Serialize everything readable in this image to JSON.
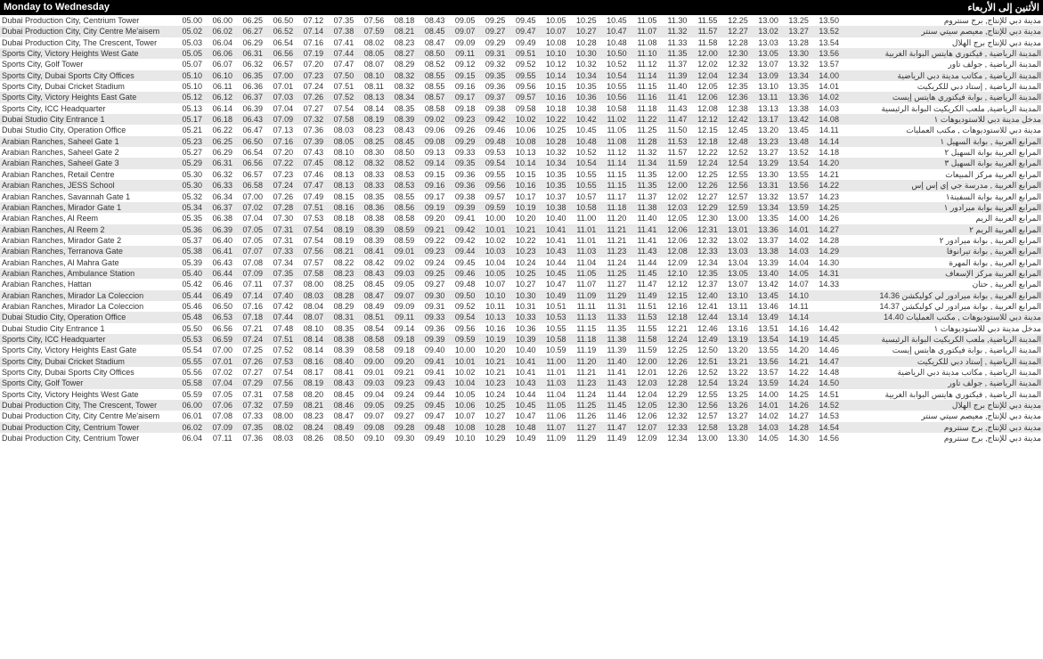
{
  "header": {
    "left": "Monday to Wednesday",
    "right": "الأثنين إلى الأربعاء"
  },
  "rows": [
    {
      "en": "Dubai Production City, Centrium Tower",
      "ar": "مدينة دبي للإنتاج, برج سنتروم",
      "t": [
        "05.00",
        "06.00",
        "06.25",
        "06.50",
        "07.12",
        "07.35",
        "07.56",
        "08.18",
        "08.43",
        "09.05",
        "09.25",
        "09.45",
        "10.05",
        "10.25",
        "10.45",
        "11.05",
        "11.30",
        "11.55",
        "12.25",
        "13.00",
        "13.25",
        "13.50"
      ]
    },
    {
      "en": "Dubai Production City, City Centre Me'aisem",
      "ar": "مدينة دبي للإنتاج, معيصم سيتي سنتر",
      "t": [
        "05.02",
        "06.02",
        "06.27",
        "06.52",
        "07.14",
        "07.38",
        "07.59",
        "08.21",
        "08.45",
        "09.07",
        "09.27",
        "09.47",
        "10.07",
        "10.27",
        "10.47",
        "11.07",
        "11.32",
        "11.57",
        "12.27",
        "13.02",
        "13.27",
        "13.52"
      ]
    },
    {
      "en": "Dubai Production City, The Crescent, Tower",
      "ar": "مدينة دبي للإنتاج برج الهلال",
      "t": [
        "05.03",
        "06.04",
        "06.29",
        "06.54",
        "07.16",
        "07.41",
        "08.02",
        "08.23",
        "08.47",
        "09.09",
        "09.29",
        "09.49",
        "10.08",
        "10.28",
        "10.48",
        "11.08",
        "11.33",
        "11.58",
        "12.28",
        "13.03",
        "13.28",
        "13.54"
      ]
    },
    {
      "en": "Sports City, Victory Heights West Gate",
      "ar": "المدينة الرياضية , فيكتوري هايتس البوابة الغربية",
      "t": [
        "05.05",
        "06.06",
        "06.31",
        "06.56",
        "07.19",
        "07.44",
        "08.05",
        "08.27",
        "08.50",
        "09.11",
        "09.31",
        "09.51",
        "10.10",
        "10.30",
        "10.50",
        "11.10",
        "11.35",
        "12.00",
        "12.30",
        "13.05",
        "13.30",
        "13.56"
      ]
    },
    {
      "en": "Sports City, Golf Tower",
      "ar": "المدينة الرياضية , جولف تاور",
      "t": [
        "05.07",
        "06.07",
        "06.32",
        "06.57",
        "07.20",
        "07.47",
        "08.07",
        "08.29",
        "08.52",
        "09.12",
        "09.32",
        "09.52",
        "10.12",
        "10.32",
        "10.52",
        "11.12",
        "11.37",
        "12.02",
        "12.32",
        "13.07",
        "13.32",
        "13.57"
      ]
    },
    {
      "en": "Sports City, Dubai Sports City Offices",
      "ar": "المدينة الرياضية , مكاتب مدينة دبي الرياضية",
      "t": [
        "05.10",
        "06.10",
        "06.35",
        "07.00",
        "07.23",
        "07.50",
        "08.10",
        "08.32",
        "08.55",
        "09.15",
        "09.35",
        "09.55",
        "10.14",
        "10.34",
        "10.54",
        "11.14",
        "11.39",
        "12.04",
        "12.34",
        "13.09",
        "13.34",
        "14.00"
      ]
    },
    {
      "en": "Sports City, Dubai Cricket Stadium",
      "ar": "المدينة الرياضية , إستاد دبي للكريكيت",
      "t": [
        "05.10",
        "06.11",
        "06.36",
        "07.01",
        "07.24",
        "07.51",
        "08.11",
        "08.32",
        "08.55",
        "09.16",
        "09.36",
        "09.56",
        "10.15",
        "10.35",
        "10.55",
        "11.15",
        "11.40",
        "12.05",
        "12.35",
        "13.10",
        "13.35",
        "14.01"
      ]
    },
    {
      "en": "Sports City, Victory Heights East Gate",
      "ar": "المدينة الرياضية , بوابة فيكتوري هايتس إيست",
      "t": [
        "05.12",
        "06.12",
        "06.37",
        "07.03",
        "07.26",
        "07.52",
        "08.13",
        "08.34",
        "08.57",
        "09.17",
        "09.37",
        "09.57",
        "10.16",
        "10.36",
        "10.56",
        "11.16",
        "11.41",
        "12.06",
        "12.36",
        "13.11",
        "13.36",
        "14.02"
      ]
    },
    {
      "en": "Sports City, ICC Headquarter",
      "ar": "المدينة الرياضية, ملعب الكريكيت البوابة الرئيسية",
      "t": [
        "05.13",
        "06.14",
        "06.39",
        "07.04",
        "07.27",
        "07.54",
        "08.14",
        "08.35",
        "08.58",
        "09.18",
        "09.38",
        "09.58",
        "10.18",
        "10.38",
        "10.58",
        "11.18",
        "11.43",
        "12.08",
        "12.38",
        "13.13",
        "13.38",
        "14.03"
      ]
    },
    {
      "en": "Dubai Studio City Entrance 1",
      "ar": "مدخل مدينة دبي للاستوديوهات ١",
      "t": [
        "05.17",
        "06.18",
        "06.43",
        "07.09",
        "07.32",
        "07.58",
        "08.19",
        "08.39",
        "09.02",
        "09.23",
        "09.42",
        "10.02",
        "10.22",
        "10.42",
        "11.02",
        "11.22",
        "11.47",
        "12.12",
        "12.42",
        "13.17",
        "13.42",
        "14.08"
      ]
    },
    {
      "en": "Dubai Studio City, Operation Office",
      "ar": "مدينة دبي للاستوديوهات , مكتب العمليات",
      "t": [
        "05.21",
        "06.22",
        "06.47",
        "07.13",
        "07.36",
        "08.03",
        "08.23",
        "08.43",
        "09.06",
        "09.26",
        "09.46",
        "10.06",
        "10.25",
        "10.45",
        "11.05",
        "11.25",
        "11.50",
        "12.15",
        "12.45",
        "13.20",
        "13.45",
        "14.11"
      ]
    },
    {
      "en": "Arabian Ranches, Saheel Gate 1",
      "ar": "المرابع العربية , بوابة السهيل ١",
      "t": [
        "05.23",
        "06.25",
        "06.50",
        "07.16",
        "07.39",
        "08.05",
        "08.25",
        "08.45",
        "09.08",
        "09.29",
        "09.48",
        "10.08",
        "10.28",
        "10.48",
        "11.08",
        "11.28",
        "11.53",
        "12.18",
        "12.48",
        "13.23",
        "13.48",
        "14.14"
      ]
    },
    {
      "en": "Arabian Ranches, Saheel Gate 2",
      "ar": "المرابع العربية بوابة السهيل ٢",
      "t": [
        "05.27",
        "06.29",
        "06.54",
        "07.20",
        "07.43",
        "08.10",
        "08.30",
        "08.50",
        "09.13",
        "09.33",
        "09.53",
        "10.13",
        "10.32",
        "10.52",
        "11.12",
        "11.32",
        "11.57",
        "12.22",
        "12.52",
        "13.27",
        "13.52",
        "14.18"
      ]
    },
    {
      "en": "Arabian Ranches, Saheel Gate 3",
      "ar": "المرابع العربية بوابة السهيل ٣",
      "t": [
        "05.29",
        "06.31",
        "06.56",
        "07.22",
        "07.45",
        "08.12",
        "08.32",
        "08.52",
        "09.14",
        "09.35",
        "09.54",
        "10.14",
        "10.34",
        "10.54",
        "11.14",
        "11.34",
        "11.59",
        "12.24",
        "12.54",
        "13.29",
        "13.54",
        "14.20"
      ]
    },
    {
      "en": "Arabian Ranches, Retail Centre",
      "ar": "المرابع العربية مركز المبيعات",
      "t": [
        "05.30",
        "06.32",
        "06.57",
        "07.23",
        "07.46",
        "08.13",
        "08.33",
        "08.53",
        "09.15",
        "09.36",
        "09.55",
        "10.15",
        "10.35",
        "10.55",
        "11.15",
        "11.35",
        "12.00",
        "12.25",
        "12.55",
        "13.30",
        "13.55",
        "14.21"
      ]
    },
    {
      "en": "Arabian Ranches, JESS School",
      "ar": "المرابع العربية , مدرسة جي إي إس إس",
      "t": [
        "05.30",
        "06.33",
        "06.58",
        "07.24",
        "07.47",
        "08.13",
        "08.33",
        "08.53",
        "09.16",
        "09.36",
        "09.56",
        "10.16",
        "10.35",
        "10.55",
        "11.15",
        "11.35",
        "12.00",
        "12.26",
        "12.56",
        "13.31",
        "13.56",
        "14.22"
      ]
    },
    {
      "en": "Arabian Ranches, Savannah Gate 1",
      "ar": "المرابع العربية بوابة السفينة١",
      "t": [
        "05.32",
        "06.34",
        "07.00",
        "07.26",
        "07.49",
        "08.15",
        "08.35",
        "08.55",
        "09.17",
        "09.38",
        "09.57",
        "10.17",
        "10.37",
        "10.57",
        "11.17",
        "11.37",
        "12.02",
        "12.27",
        "12.57",
        "13.32",
        "13.57",
        "14.23"
      ]
    },
    {
      "en": "Arabian Ranches, Mirador Gate 1",
      "ar": "المرابع العربية بوابة ميرادور ١",
      "t": [
        "05.34",
        "06.37",
        "07.02",
        "07.28",
        "07.51",
        "08.16",
        "08.36",
        "08.56",
        "09.19",
        "09.39",
        "09.59",
        "10.19",
        "10.38",
        "10.58",
        "11.18",
        "11.38",
        "12.03",
        "12.29",
        "12.59",
        "13.34",
        "13.59",
        "14.25"
      ]
    },
    {
      "en": "Arabian Ranches, Al Reem",
      "ar": "المرابع العربية الريم",
      "t": [
        "05.35",
        "06.38",
        "07.04",
        "07.30",
        "07.53",
        "08.18",
        "08.38",
        "08.58",
        "09.20",
        "09.41",
        "10.00",
        "10.20",
        "10.40",
        "11.00",
        "11.20",
        "11.40",
        "12.05",
        "12.30",
        "13.00",
        "13.35",
        "14.00",
        "14.26"
      ]
    },
    {
      "en": "Arabian Ranches, Al Reem 2",
      "ar": "المرابع العربية الريم ٢",
      "t": [
        "05.36",
        "06.39",
        "07.05",
        "07.31",
        "07.54",
        "08.19",
        "08.39",
        "08.59",
        "09.21",
        "09.42",
        "10.01",
        "10.21",
        "10.41",
        "11.01",
        "11.21",
        "11.41",
        "12.06",
        "12.31",
        "13.01",
        "13.36",
        "14.01",
        "14.27"
      ]
    },
    {
      "en": "Arabian Ranches, Mirador Gate 2",
      "ar": "المرابع العربية , بوابة ميرادور ٢",
      "t": [
        "05.37",
        "06.40",
        "07.05",
        "07.31",
        "07.54",
        "08.19",
        "08.39",
        "08.59",
        "09.22",
        "09.42",
        "10.02",
        "10.22",
        "10.41",
        "11.01",
        "11.21",
        "11.41",
        "12.06",
        "12.32",
        "13.02",
        "13.37",
        "14.02",
        "14.28"
      ]
    },
    {
      "en": "Arabian Ranches, Terranova Gate",
      "ar": "المرابع العربية , بوابة تيرانوفا",
      "t": [
        "05.38",
        "06.41",
        "07.07",
        "07.33",
        "07.56",
        "08.21",
        "08.41",
        "09.01",
        "09.23",
        "09.44",
        "10.03",
        "10.23",
        "10.43",
        "11.03",
        "11.23",
        "11.43",
        "12.08",
        "12.33",
        "13.03",
        "13.38",
        "14.03",
        "14.29"
      ]
    },
    {
      "en": "Arabian Ranches, Al Mahra Gate",
      "ar": "المرابع العربية , بوابة المهرة",
      "t": [
        "05.39",
        "06.43",
        "07.08",
        "07.34",
        "07.57",
        "08.22",
        "08.42",
        "09.02",
        "09.24",
        "09.45",
        "10.04",
        "10.24",
        "10.44",
        "11.04",
        "11.24",
        "11.44",
        "12.09",
        "12.34",
        "13.04",
        "13.39",
        "14.04",
        "14.30"
      ]
    },
    {
      "en": "Arabian Ranches, Ambulance Station",
      "ar": "المرابع العربية مركز الإسعاف",
      "t": [
        "05.40",
        "06.44",
        "07.09",
        "07.35",
        "07.58",
        "08.23",
        "08.43",
        "09.03",
        "09.25",
        "09.46",
        "10.05",
        "10.25",
        "10.45",
        "11.05",
        "11.25",
        "11.45",
        "12.10",
        "12.35",
        "13.05",
        "13.40",
        "14.05",
        "14.31"
      ]
    },
    {
      "en": "Arabian Ranches, Hattan",
      "ar": "المرابع العربية , حتان",
      "t": [
        "05.42",
        "06.46",
        "07.11",
        "07.37",
        "08.00",
        "08.25",
        "08.45",
        "09.05",
        "09.27",
        "09.48",
        "10.07",
        "10.27",
        "10.47",
        "11.07",
        "11.27",
        "11.47",
        "12.12",
        "12.37",
        "13.07",
        "13.42",
        "14.07",
        "14.33"
      ]
    },
    {
      "en": "Arabian Ranches, Mirador La Coleccion",
      "ar": "المرابع العربية , بوابة ميرادور لي كوليكشن 14.36",
      "t": [
        "05.44",
        "06.49",
        "07.14",
        "07.40",
        "08.03",
        "08.28",
        "08.47",
        "09.07",
        "09.30",
        "09.50",
        "10.10",
        "10.30",
        "10.49",
        "11.09",
        "11.29",
        "11.49",
        "12.15",
        "12.40",
        "13.10",
        "13.45",
        "14.10",
        ""
      ]
    },
    {
      "en": "Arabian Ranches, Mirador La Coleccion",
      "ar": "المرابع العربية , بوابة ميرادور لي كوليكشن 14.37",
      "t": [
        "05.46",
        "06.50",
        "07.16",
        "07.42",
        "08.04",
        "08.29",
        "08.49",
        "09.09",
        "09.31",
        "09.52",
        "10.11",
        "10.31",
        "10.51",
        "11.11",
        "11.31",
        "11.51",
        "12.16",
        "12.41",
        "13.11",
        "13.46",
        "14.11",
        ""
      ]
    },
    {
      "en": "Dubai Studio City, Operation Office",
      "ar": "مدينة دبي للاستوديوهات , مكتب العمليات 14.40",
      "t": [
        "05.48",
        "06.53",
        "07.18",
        "07.44",
        "08.07",
        "08.31",
        "08.51",
        "09.11",
        "09.33",
        "09.54",
        "10.13",
        "10.33",
        "10.53",
        "11.13",
        "11.33",
        "11.53",
        "12.18",
        "12.44",
        "13.14",
        "13.49",
        "14.14",
        ""
      ]
    },
    {
      "en": "Dubai Studio City Entrance 1",
      "ar": "مدخل مدينة دبي للاستوديوهات ١",
      "t": [
        "05.50",
        "06.56",
        "07.21",
        "07.48",
        "08.10",
        "08.35",
        "08.54",
        "09.14",
        "09.36",
        "09.56",
        "10.16",
        "10.36",
        "10.55",
        "11.15",
        "11.35",
        "11.55",
        "12.21",
        "12.46",
        "13.16",
        "13.51",
        "14.16",
        "14.42"
      ]
    },
    {
      "en": "Sports City, ICC Headquarter",
      "ar": "المدينة الرياضية, ملعب الكريكيت البوابة الرئيسية",
      "t": [
        "05.53",
        "06.59",
        "07.24",
        "07.51",
        "08.14",
        "08.38",
        "08.58",
        "09.18",
        "09.39",
        "09.59",
        "10.19",
        "10.39",
        "10.58",
        "11.18",
        "11.38",
        "11.58",
        "12.24",
        "12.49",
        "13.19",
        "13.54",
        "14.19",
        "14.45"
      ]
    },
    {
      "en": "Sports City, Victory Heights East Gate",
      "ar": "المدينة الرياضية , بوابة فيكتوري هايتس إيست",
      "t": [
        "05.54",
        "07.00",
        "07.25",
        "07.52",
        "08.14",
        "08.39",
        "08.58",
        "09.18",
        "09.40",
        "10.00",
        "10.20",
        "10.40",
        "10.59",
        "11.19",
        "11.39",
        "11.59",
        "12.25",
        "12.50",
        "13.20",
        "13.55",
        "14.20",
        "14.46"
      ]
    },
    {
      "en": "Sports City, Dubai Cricket Stadium",
      "ar": "المدينة الرياضية , إستاد دبي للكريكيت",
      "t": [
        "05.55",
        "07.01",
        "07.26",
        "07.53",
        "08.16",
        "08.40",
        "09.00",
        "09.20",
        "09.41",
        "10.01",
        "10.21",
        "10.41",
        "11.00",
        "11.20",
        "11.40",
        "12.00",
        "12.26",
        "12.51",
        "13.21",
        "13.56",
        "14.21",
        "14.47"
      ]
    },
    {
      "en": "Sports City, Dubai Sports City Offices",
      "ar": "المدينة الرياضية , مكاتب مدينة دبي الرياضية",
      "t": [
        "05.56",
        "07.02",
        "07.27",
        "07.54",
        "08.17",
        "08.41",
        "09.01",
        "09.21",
        "09.41",
        "10.02",
        "10.21",
        "10.41",
        "11.01",
        "11.21",
        "11.41",
        "12.01",
        "12.26",
        "12.52",
        "13.22",
        "13.57",
        "14.22",
        "14.48"
      ]
    },
    {
      "en": "Sports City, Golf Tower",
      "ar": "المدينة الرياضية , جولف تاور",
      "t": [
        "05.58",
        "07.04",
        "07.29",
        "07.56",
        "08.19",
        "08.43",
        "09.03",
        "09.23",
        "09.43",
        "10.04",
        "10.23",
        "10.43",
        "11.03",
        "11.23",
        "11.43",
        "12.03",
        "12.28",
        "12.54",
        "13.24",
        "13.59",
        "14.24",
        "14.50"
      ]
    },
    {
      "en": "Sports City, Victory Heights West Gate",
      "ar": "المدينة الرياضية , فيكتوري هايتس البوابة الغربية",
      "t": [
        "05.59",
        "07.05",
        "07.31",
        "07.58",
        "08.20",
        "08.45",
        "09.04",
        "09.24",
        "09.44",
        "10.05",
        "10.24",
        "10.44",
        "11.04",
        "11.24",
        "11.44",
        "12.04",
        "12.29",
        "12.55",
        "13.25",
        "14.00",
        "14.25",
        "14.51"
      ]
    },
    {
      "en": "Dubai Production City, The Crescent, Tower",
      "ar": "مدينة دبي للإنتاج برج الهلال",
      "t": [
        "06.00",
        "07.06",
        "07.32",
        "07.59",
        "08.21",
        "08.46",
        "09.05",
        "09.25",
        "09.45",
        "10.06",
        "10.25",
        "10.45",
        "11.05",
        "11.25",
        "11.45",
        "12.05",
        "12.30",
        "12.56",
        "13.26",
        "14.01",
        "14.26",
        "14.52"
      ]
    },
    {
      "en": "Dubai Production City, City Centre Me'aisem",
      "ar": "مدينة دبي للإنتاج, معيصم سيتي سنتر",
      "t": [
        "06.01",
        "07.08",
        "07.33",
        "08.00",
        "08.23",
        "08.47",
        "09.07",
        "09.27",
        "09.47",
        "10.07",
        "10.27",
        "10.47",
        "11.06",
        "11.26",
        "11.46",
        "12.06",
        "12.32",
        "12.57",
        "13.27",
        "14.02",
        "14.27",
        "14.53"
      ]
    },
    {
      "en": "Dubai Production City, Centrium Tower",
      "ar": "مدينة دبي للإنتاج, برج سنتروم",
      "t": [
        "06.02",
        "07.09",
        "07.35",
        "08.02",
        "08.24",
        "08.49",
        "09.08",
        "09.28",
        "09.48",
        "10.08",
        "10.28",
        "10.48",
        "11.07",
        "11.27",
        "11.47",
        "12.07",
        "12.33",
        "12.58",
        "13.28",
        "14.03",
        "14.28",
        "14.54"
      ]
    },
    {
      "en": "Dubai Production City, Centrium Tower",
      "ar": "مدينة دبي للإنتاج, برج سنتروم",
      "t": [
        "06.04",
        "07.11",
        "07.36",
        "08.03",
        "08.26",
        "08.50",
        "09.10",
        "09.30",
        "09.49",
        "10.10",
        "10.29",
        "10.49",
        "11.09",
        "11.29",
        "11.49",
        "12.09",
        "12.34",
        "13.00",
        "13.30",
        "14.05",
        "14.30",
        "14.56"
      ]
    }
  ]
}
